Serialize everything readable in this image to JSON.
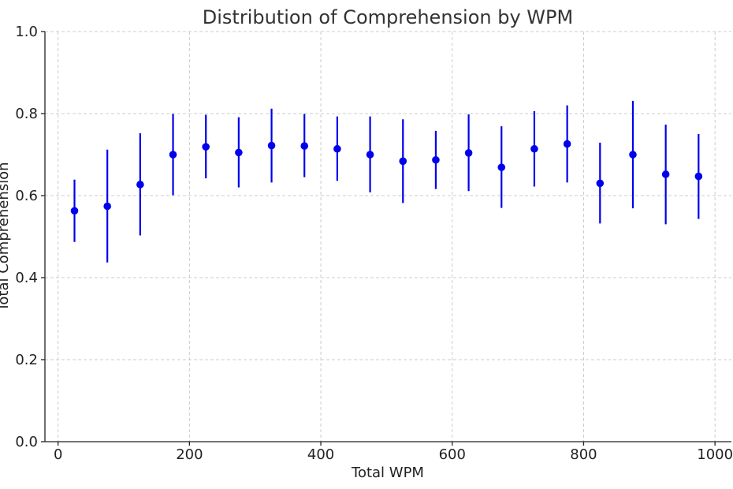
{
  "chart_data": {
    "type": "scatter",
    "title": "Distribution of Comprehension by WPM",
    "xlabel": "Total WPM",
    "ylabel": "Total Comprehension",
    "xlim": [
      -20,
      1025
    ],
    "ylim": [
      0.0,
      1.0
    ],
    "xticks": [
      0,
      200,
      400,
      600,
      800,
      1000
    ],
    "xtick_labels": [
      "0",
      "200",
      "400",
      "600",
      "800",
      "1000"
    ],
    "yticks": [
      0.0,
      0.2,
      0.4,
      0.6,
      0.8,
      1.0
    ],
    "ytick_labels": [
      "0.0",
      "0.2",
      "0.4",
      "0.6",
      "0.8",
      "1.0"
    ],
    "grid": true,
    "color": "#0000ee",
    "series": [
      {
        "x": [
          25,
          75,
          125,
          175,
          225,
          275,
          325,
          375,
          425,
          475,
          525,
          575,
          625,
          675,
          725,
          775,
          825,
          875,
          925,
          975
        ],
        "y": [
          0.563,
          0.574,
          0.627,
          0.7,
          0.719,
          0.705,
          0.722,
          0.721,
          0.714,
          0.7,
          0.684,
          0.687,
          0.704,
          0.669,
          0.714,
          0.726,
          0.63,
          0.7,
          0.652,
          0.647
        ],
        "y_low": [
          0.487,
          0.437,
          0.503,
          0.601,
          0.642,
          0.62,
          0.632,
          0.645,
          0.636,
          0.608,
          0.582,
          0.616,
          0.611,
          0.57,
          0.622,
          0.632,
          0.532,
          0.569,
          0.53,
          0.543
        ],
        "y_high": [
          0.639,
          0.712,
          0.752,
          0.799,
          0.797,
          0.791,
          0.812,
          0.799,
          0.793,
          0.793,
          0.786,
          0.758,
          0.798,
          0.769,
          0.806,
          0.82,
          0.729,
          0.831,
          0.773,
          0.75
        ]
      }
    ]
  }
}
